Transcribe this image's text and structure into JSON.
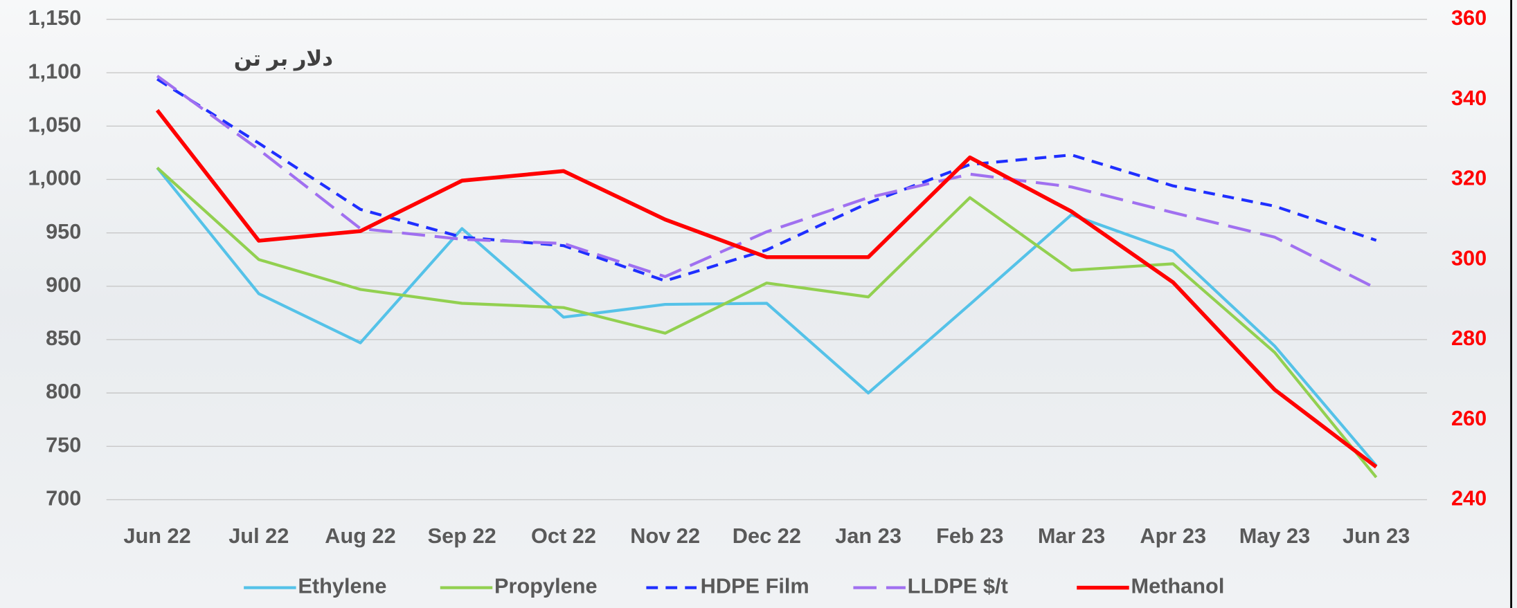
{
  "chart_data": {
    "type": "line",
    "annotation": "دلار بر تن",
    "categories": [
      "Jun 22",
      "Jul 22",
      "Aug 22",
      "Sep 22",
      "Oct 22",
      "Nov 22",
      "Dec 22",
      "Jan 23",
      "Feb 23",
      "Mar 23",
      "Apr 23",
      "May 23",
      "Jun 23"
    ],
    "series": [
      {
        "name": "Ethylene",
        "color": "#55c2e8",
        "style": "solid",
        "values": [
          1011,
          893,
          847,
          954,
          871,
          883,
          884,
          800,
          883,
          967,
          933,
          844,
          732
        ]
      },
      {
        "name": "Propylene",
        "color": "#92d050",
        "style": "solid",
        "values": [
          1011,
          925,
          897,
          884,
          880,
          856,
          903,
          890,
          983,
          915,
          921,
          838,
          721
        ]
      },
      {
        "name": "HDPE Film",
        "color": "#1f2fff",
        "style": "dash",
        "values": [
          1094,
          1034,
          972,
          946,
          938,
          905,
          934,
          978,
          1014,
          1023,
          994,
          975,
          943
        ]
      },
      {
        "name": "LLDPE $/t",
        "color": "#a070f0",
        "style": "longdash",
        "values": [
          1097,
          1028,
          954,
          944,
          940,
          909,
          951,
          983,
          1005,
          993,
          969,
          946,
          898
        ]
      },
      {
        "name": "Methanol",
        "color": "#ff0000",
        "style": "solid",
        "axis": "y2",
        "values": [
          337.3,
          304.7,
          307.1,
          319.7,
          322.1,
          310,
          300.6,
          300.6,
          325.5,
          312,
          294.3,
          267.5,
          248.2
        ]
      }
    ],
    "ylim": [
      700,
      1150
    ],
    "yticks": [
      700,
      750,
      800,
      850,
      900,
      950,
      {
        "value": 1000,
        "label": "1,000"
      },
      {
        "value": 1050,
        "label": "1,050"
      },
      {
        "value": 1100,
        "label": "1,100"
      },
      {
        "value": 1150,
        "label": "1,150"
      }
    ],
    "y2lim": [
      240,
      360
    ],
    "y2ticks": [
      240,
      260,
      280,
      300,
      320,
      340,
      360
    ],
    "grid": true,
    "legend": "bottom"
  }
}
